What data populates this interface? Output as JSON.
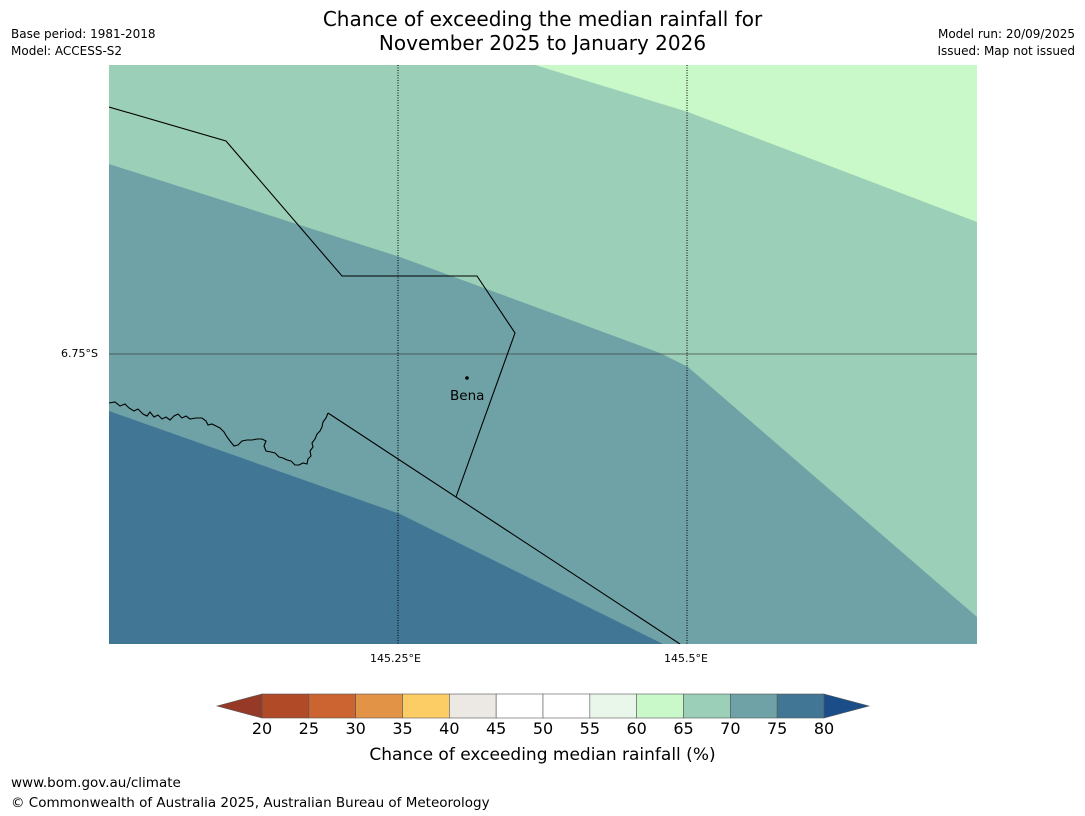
{
  "header": {
    "title_line1": "Chance of exceeding the median rainfall for",
    "title_line2": "November 2025 to January 2026",
    "base_period": "Base period: 1981-2018",
    "model": "Model: ACCESS-S2",
    "model_run": "Model run: 20/09/2025",
    "issued": "Issued: Map not issued"
  },
  "map": {
    "lat_label": "6.75°S",
    "lon_labels": [
      "145.25°E",
      "145.5°E"
    ],
    "place": {
      "name": "Bena"
    },
    "zone_values_percent": [
      65,
      70,
      75,
      60
    ],
    "zone_colors": {
      "60-65": "#c9f9c8",
      "65-70": "#9ccfb7",
      "70-75": "#6ea2a6",
      "75-80": "#417795"
    }
  },
  "colorbar": {
    "ticks": [
      "20",
      "25",
      "30",
      "35",
      "40",
      "45",
      "50",
      "55",
      "60",
      "65",
      "70",
      "75",
      "80"
    ],
    "colors": [
      "#963a27",
      "#b04a27",
      "#cc6431",
      "#e29345",
      "#fdcd65",
      "#ece8e3",
      "#ffffff",
      "#ffffff",
      "#e9f6ea",
      "#c9f9c8",
      "#9ccfb7",
      "#6ea2a6",
      "#417795",
      "#1b4e89"
    ],
    "title": "Chance of exceeding median rainfall (%)"
  },
  "footer": {
    "url": "www.bom.gov.au/climate",
    "copyright": "© Commonwealth of Australia 2025, Australian Bureau of Meteorology"
  }
}
